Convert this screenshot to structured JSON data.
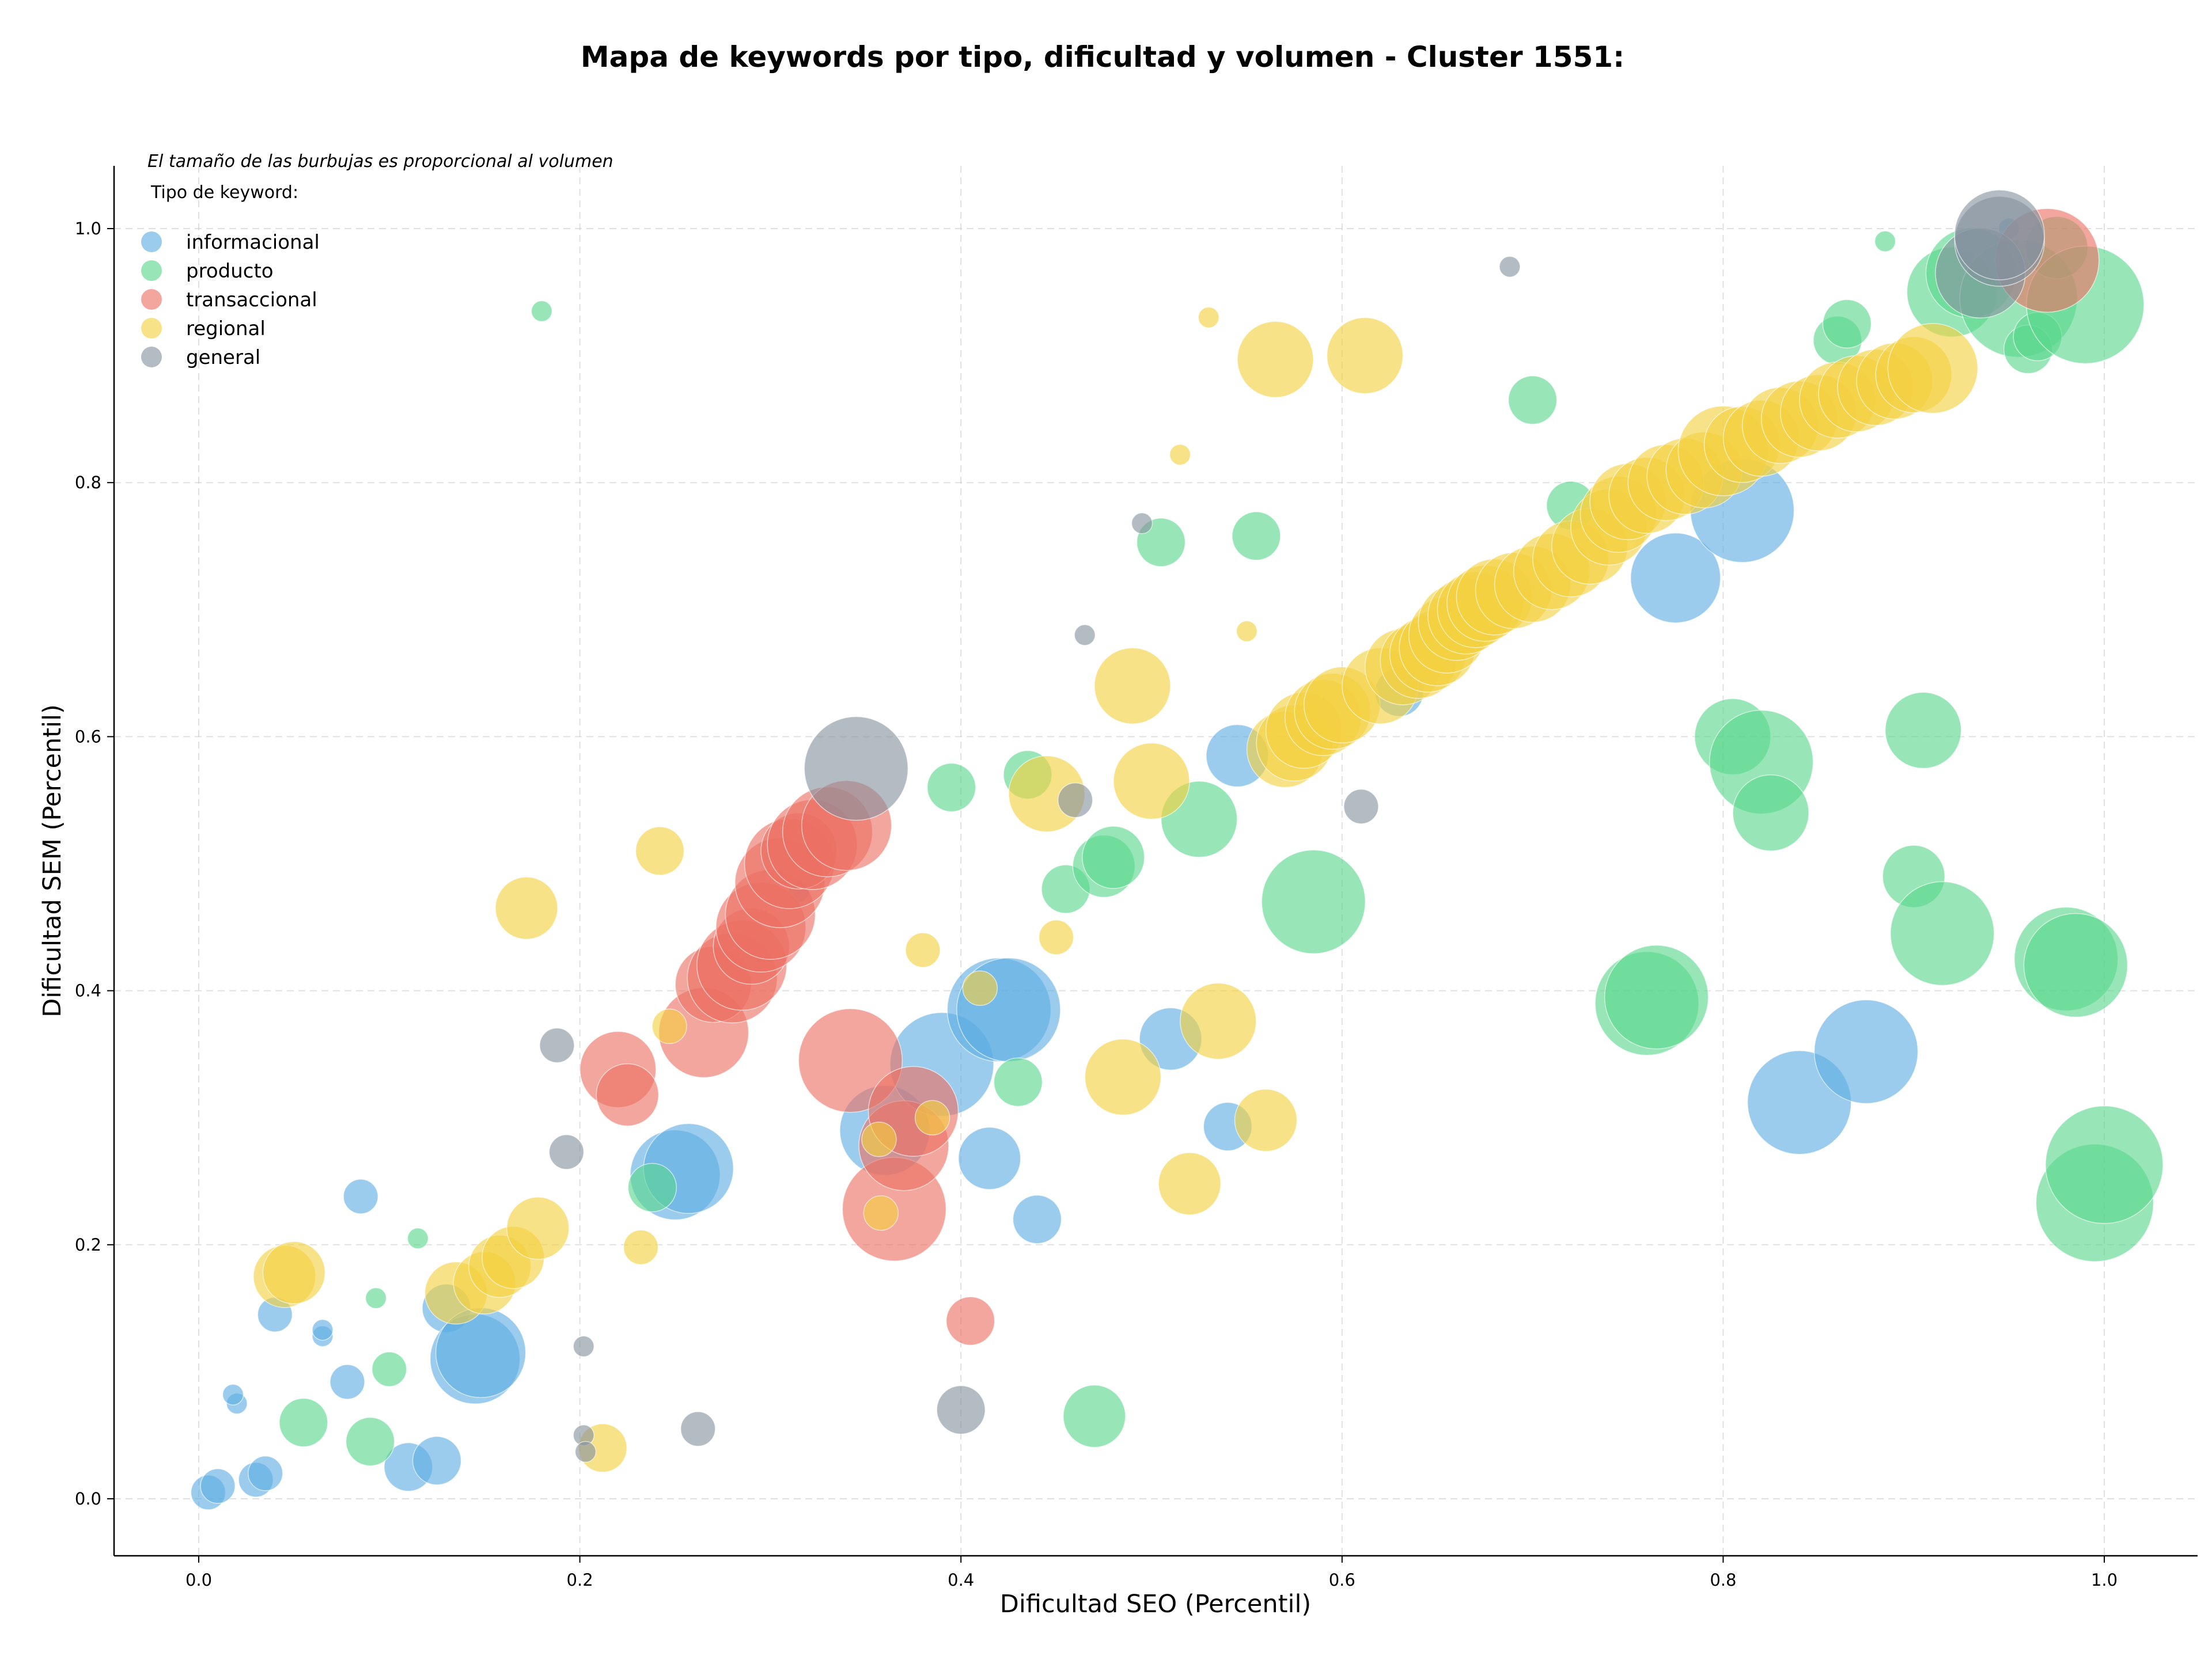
{
  "chart_data": {
    "type": "scatter",
    "title": "Mapa de keywords por tipo, dificultad y volumen - Cluster 1551:",
    "xlabel": "Dificultad SEO (Percentil)",
    "ylabel": "Dificultad SEM (Percentil)",
    "note": "El tamaño de las burbujas es proporcional al volumen",
    "legend_title": "Tipo de keyword:",
    "legend_position": "top-left",
    "grid": true,
    "xlim": [
      -0.045,
      1.05
    ],
    "ylim": [
      -0.045,
      1.05
    ],
    "x_ticks": [
      "0.0",
      "0.2",
      "0.4",
      "0.6",
      "0.8",
      "1.0"
    ],
    "y_ticks": [
      "0.0",
      "0.2",
      "0.4",
      "0.6",
      "0.8",
      "1.0"
    ],
    "series": [
      {
        "name": "informacional",
        "color": "#5DADE2",
        "points": [
          [
            0.005,
            0.005,
            2
          ],
          [
            0.01,
            0.01,
            2
          ],
          [
            0.03,
            0.015,
            2
          ],
          [
            0.035,
            0.02,
            2
          ],
          [
            0.02,
            0.075,
            1
          ],
          [
            0.018,
            0.082,
            1
          ],
          [
            0.04,
            0.145,
            2
          ],
          [
            0.065,
            0.128,
            1
          ],
          [
            0.065,
            0.133,
            1
          ],
          [
            0.078,
            0.092,
            2
          ],
          [
            0.085,
            0.238,
            2
          ],
          [
            0.11,
            0.025,
            3
          ],
          [
            0.125,
            0.03,
            3
          ],
          [
            0.13,
            0.15,
            3
          ],
          [
            0.145,
            0.11,
            6
          ],
          [
            0.148,
            0.115,
            6
          ],
          [
            0.25,
            0.255,
            6
          ],
          [
            0.257,
            0.26,
            6
          ],
          [
            0.315,
            0.478,
            1
          ],
          [
            0.36,
            0.29,
            6
          ],
          [
            0.39,
            0.342,
            7
          ],
          [
            0.415,
            0.268,
            4
          ],
          [
            0.42,
            0.385,
            7
          ],
          [
            0.425,
            0.385,
            7
          ],
          [
            0.44,
            0.22,
            3
          ],
          [
            0.51,
            0.362,
            4
          ],
          [
            0.54,
            0.293,
            3
          ],
          [
            0.545,
            0.585,
            4
          ],
          [
            0.63,
            0.635,
            3
          ],
          [
            0.775,
            0.725,
            6
          ],
          [
            0.81,
            0.778,
            7
          ],
          [
            0.84,
            0.312,
            7
          ],
          [
            0.875,
            0.352,
            7
          ],
          [
            0.95,
            1.0,
            1
          ]
        ]
      },
      {
        "name": "producto",
        "color": "#58D68D",
        "points": [
          [
            0.055,
            0.06,
            3
          ],
          [
            0.09,
            0.045,
            3
          ],
          [
            0.093,
            0.158,
            1
          ],
          [
            0.1,
            0.102,
            2
          ],
          [
            0.115,
            0.205,
            1
          ],
          [
            0.18,
            0.935,
            1
          ],
          [
            0.238,
            0.245,
            3
          ],
          [
            0.395,
            0.56,
            3
          ],
          [
            0.43,
            0.328,
            3
          ],
          [
            0.435,
            0.57,
            3
          ],
          [
            0.455,
            0.48,
            3
          ],
          [
            0.47,
            0.065,
            4
          ],
          [
            0.475,
            0.498,
            4
          ],
          [
            0.48,
            0.505,
            4
          ],
          [
            0.505,
            0.753,
            3
          ],
          [
            0.525,
            0.535,
            5
          ],
          [
            0.555,
            0.758,
            3
          ],
          [
            0.585,
            0.47,
            7
          ],
          [
            0.7,
            0.865,
            3
          ],
          [
            0.72,
            0.782,
            3
          ],
          [
            0.76,
            0.39,
            7
          ],
          [
            0.765,
            0.395,
            7
          ],
          [
            0.805,
            0.6,
            5
          ],
          [
            0.82,
            0.58,
            7
          ],
          [
            0.825,
            0.54,
            5
          ],
          [
            0.86,
            0.912,
            3
          ],
          [
            0.865,
            0.925,
            3
          ],
          [
            0.885,
            0.99,
            1
          ],
          [
            0.9,
            0.49,
            4
          ],
          [
            0.905,
            0.605,
            5
          ],
          [
            0.915,
            0.445,
            7
          ],
          [
            0.92,
            0.95,
            6
          ],
          [
            0.93,
            0.965,
            6
          ],
          [
            0.955,
            0.945,
            8
          ],
          [
            0.96,
            0.905,
            3
          ],
          [
            0.965,
            0.915,
            3
          ],
          [
            0.975,
            0.985,
            4
          ],
          [
            0.98,
            0.425,
            7
          ],
          [
            0.985,
            0.42,
            7
          ],
          [
            0.99,
            0.94,
            8
          ],
          [
            0.995,
            0.233,
            8
          ],
          [
            1.0,
            0.263,
            8
          ]
        ]
      },
      {
        "name": "transaccional",
        "color": "#EC7063",
        "points": [
          [
            0.22,
            0.338,
            5
          ],
          [
            0.225,
            0.318,
            4
          ],
          [
            0.265,
            0.367,
            6
          ],
          [
            0.27,
            0.405,
            5
          ],
          [
            0.28,
            0.41,
            6
          ],
          [
            0.285,
            0.42,
            6
          ],
          [
            0.29,
            0.435,
            5
          ],
          [
            0.295,
            0.45,
            6
          ],
          [
            0.3,
            0.46,
            6
          ],
          [
            0.305,
            0.485,
            6
          ],
          [
            0.31,
            0.5,
            6
          ],
          [
            0.315,
            0.51,
            5
          ],
          [
            0.322,
            0.515,
            6
          ],
          [
            0.33,
            0.525,
            6
          ],
          [
            0.34,
            0.53,
            6
          ],
          [
            0.342,
            0.345,
            7
          ],
          [
            0.365,
            0.228,
            7
          ],
          [
            0.37,
            0.278,
            6
          ],
          [
            0.375,
            0.305,
            6
          ],
          [
            0.405,
            0.14,
            3
          ],
          [
            0.97,
            0.975,
            7
          ]
        ]
      },
      {
        "name": "regional",
        "color": "#F4D03F",
        "points": [
          [
            0.045,
            0.175,
            4
          ],
          [
            0.05,
            0.178,
            4
          ],
          [
            0.135,
            0.162,
            4
          ],
          [
            0.15,
            0.17,
            4
          ],
          [
            0.158,
            0.183,
            4
          ],
          [
            0.165,
            0.19,
            4
          ],
          [
            0.172,
            0.465,
            4
          ],
          [
            0.178,
            0.213,
            4
          ],
          [
            0.212,
            0.04,
            3
          ],
          [
            0.232,
            0.198,
            2
          ],
          [
            0.242,
            0.51,
            3
          ],
          [
            0.247,
            0.372,
            2
          ],
          [
            0.357,
            0.283,
            2
          ],
          [
            0.358,
            0.225,
            2
          ],
          [
            0.38,
            0.432,
            2
          ],
          [
            0.385,
            0.3,
            2
          ],
          [
            0.41,
            0.402,
            2
          ],
          [
            0.445,
            0.555,
            5
          ],
          [
            0.45,
            0.442,
            2
          ],
          [
            0.485,
            0.332,
            5
          ],
          [
            0.49,
            0.64,
            5
          ],
          [
            0.5,
            0.565,
            5
          ],
          [
            0.515,
            0.822,
            1
          ],
          [
            0.52,
            0.248,
            4
          ],
          [
            0.53,
            0.93,
            1
          ],
          [
            0.535,
            0.376,
            5
          ],
          [
            0.55,
            0.683,
            1
          ],
          [
            0.56,
            0.298,
            4
          ],
          [
            0.565,
            0.897,
            5
          ],
          [
            0.57,
            0.59,
            5
          ],
          [
            0.575,
            0.595,
            5
          ],
          [
            0.58,
            0.605,
            5
          ],
          [
            0.59,
            0.615,
            5
          ],
          [
            0.595,
            0.62,
            5
          ],
          [
            0.6,
            0.625,
            5
          ],
          [
            0.612,
            0.9,
            5
          ],
          [
            0.62,
            0.64,
            5
          ],
          [
            0.632,
            0.655,
            5
          ],
          [
            0.64,
            0.66,
            5
          ],
          [
            0.645,
            0.665,
            5
          ],
          [
            0.65,
            0.67,
            5
          ],
          [
            0.655,
            0.68,
            5
          ],
          [
            0.66,
            0.69,
            5
          ],
          [
            0.665,
            0.695,
            5
          ],
          [
            0.67,
            0.7,
            5
          ],
          [
            0.675,
            0.705,
            5
          ],
          [
            0.68,
            0.71,
            5
          ],
          [
            0.69,
            0.715,
            5
          ],
          [
            0.7,
            0.72,
            5
          ],
          [
            0.71,
            0.73,
            5
          ],
          [
            0.72,
            0.74,
            5
          ],
          [
            0.73,
            0.75,
            5
          ],
          [
            0.74,
            0.765,
            5
          ],
          [
            0.745,
            0.775,
            5
          ],
          [
            0.75,
            0.785,
            5
          ],
          [
            0.76,
            0.79,
            5
          ],
          [
            0.77,
            0.8,
            5
          ],
          [
            0.78,
            0.805,
            5
          ],
          [
            0.79,
            0.81,
            5
          ],
          [
            0.8,
            0.825,
            6
          ],
          [
            0.81,
            0.83,
            5
          ],
          [
            0.82,
            0.835,
            5
          ],
          [
            0.83,
            0.845,
            5
          ],
          [
            0.84,
            0.85,
            5
          ],
          [
            0.85,
            0.855,
            5
          ],
          [
            0.86,
            0.865,
            5
          ],
          [
            0.87,
            0.87,
            5
          ],
          [
            0.88,
            0.875,
            5
          ],
          [
            0.89,
            0.88,
            5
          ],
          [
            0.9,
            0.885,
            5
          ],
          [
            0.91,
            0.89,
            6
          ]
        ]
      },
      {
        "name": "general",
        "color": "#85929E",
        "points": [
          [
            0.188,
            0.357,
            2
          ],
          [
            0.193,
            0.273,
            2
          ],
          [
            0.202,
            0.12,
            1
          ],
          [
            0.202,
            0.05,
            1
          ],
          [
            0.203,
            0.037,
            1
          ],
          [
            0.262,
            0.055,
            2
          ],
          [
            0.345,
            0.575,
            7
          ],
          [
            0.4,
            0.07,
            3
          ],
          [
            0.46,
            0.55,
            2
          ],
          [
            0.465,
            0.68,
            1
          ],
          [
            0.495,
            0.768,
            1
          ],
          [
            0.61,
            0.545,
            2
          ],
          [
            0.688,
            0.97,
            1
          ],
          [
            0.935,
            0.965,
            6
          ],
          [
            0.945,
            0.99,
            6
          ],
          [
            0.945,
            0.995,
            6
          ]
        ]
      }
    ]
  }
}
